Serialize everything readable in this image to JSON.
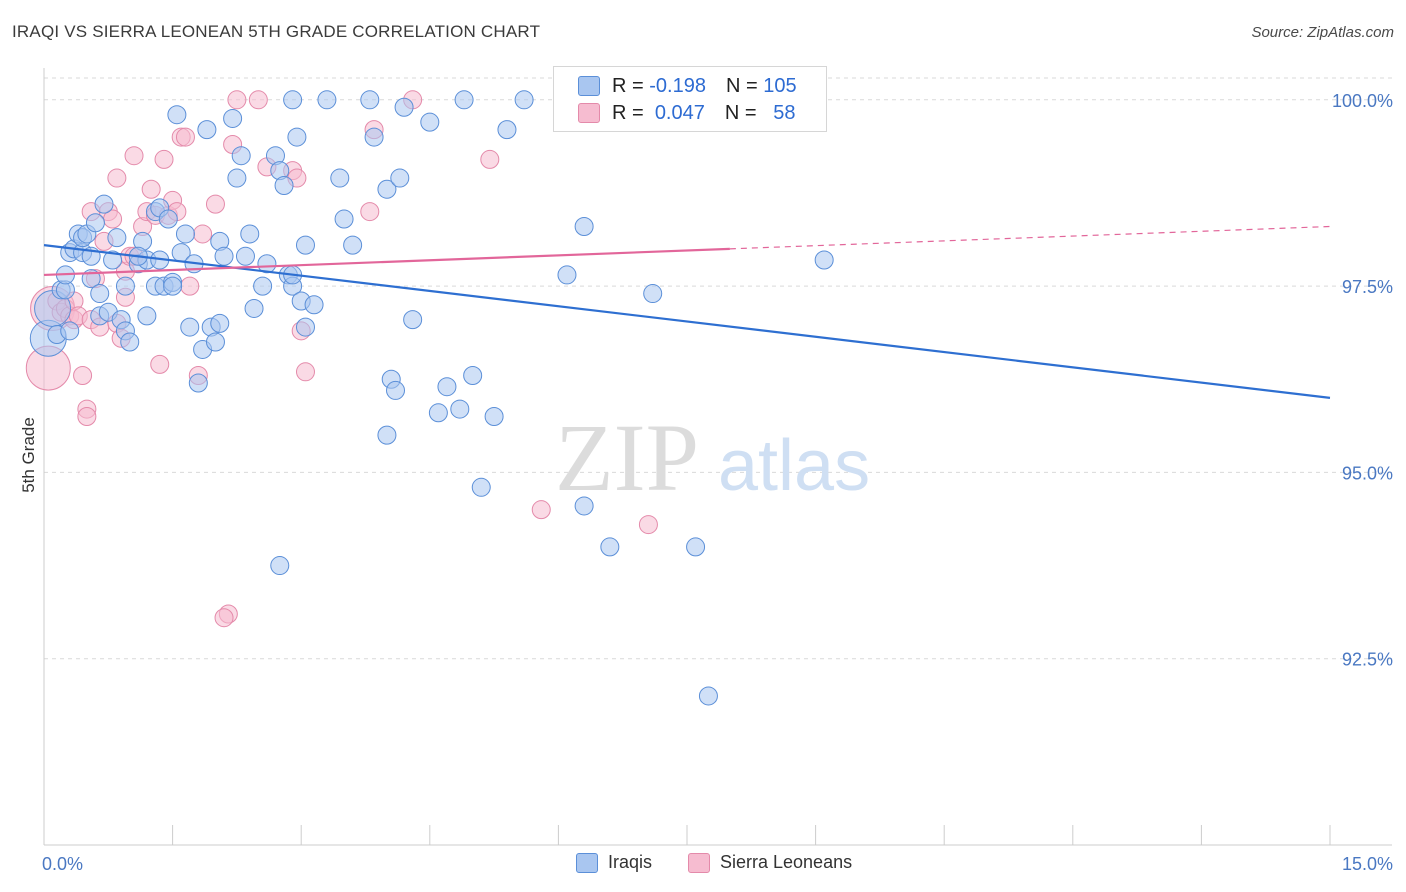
{
  "title": "IRAQI VS SIERRA LEONEAN 5TH GRADE CORRELATION CHART",
  "source": "Source: ZipAtlas.com",
  "watermark": {
    "zip": "ZIP",
    "atlas": "atlas"
  },
  "legend": {
    "rows": [
      {
        "r_label": "R =",
        "r_value": "-0.198",
        "n_label": "N =",
        "n_value": "105"
      },
      {
        "r_label": "R =",
        "r_value": "0.047",
        "n_label": "N =",
        "n_value": "58"
      }
    ]
  },
  "bottom_legend": [
    "Iraqis",
    "Sierra Leoneans"
  ],
  "colors": {
    "iraqis_fill": "#a9c6f0",
    "iraqis_stroke": "#5b8fd8",
    "iraqis_line": "#2e6fd1",
    "sierra_fill": "#f6bcd0",
    "sierra_stroke": "#e48aaa",
    "sierra_line": "#e2669a",
    "tick": "#4a78c2",
    "grid": "#d9d9d9"
  },
  "chart_data": {
    "type": "scatter",
    "title": "IRAQI VS SIERRA LEONEAN 5TH GRADE CORRELATION CHART",
    "xlabel": "",
    "ylabel": "5th Grade",
    "xlim": [
      0,
      15
    ],
    "ylim": [
      90.0,
      100.4
    ],
    "x_tick_labels": [
      "0.0%",
      "15.0%"
    ],
    "y_ticks": [
      92.5,
      95.0,
      97.5,
      100.0
    ],
    "y_tick_labels": [
      "92.5%",
      "95.0%",
      "97.5%",
      "100.0%"
    ],
    "grid": "horizontal dashed",
    "series": [
      {
        "name": "Iraqis",
        "trend": {
          "x": [
            0,
            15
          ],
          "y": [
            98.05,
            96.0
          ]
        },
        "points": [
          [
            0.05,
            96.8
          ],
          [
            0.1,
            97.2
          ],
          [
            0.15,
            96.85
          ],
          [
            0.2,
            97.45
          ],
          [
            0.25,
            97.45
          ],
          [
            0.25,
            97.65
          ],
          [
            0.3,
            97.95
          ],
          [
            0.3,
            96.9
          ],
          [
            0.35,
            98.0
          ],
          [
            0.4,
            98.2
          ],
          [
            0.45,
            97.95
          ],
          [
            0.45,
            98.15
          ],
          [
            0.5,
            98.2
          ],
          [
            0.55,
            97.9
          ],
          [
            0.55,
            97.6
          ],
          [
            0.6,
            98.35
          ],
          [
            0.65,
            97.1
          ],
          [
            0.65,
            97.4
          ],
          [
            0.7,
            98.6
          ],
          [
            0.75,
            97.15
          ],
          [
            0.8,
            97.85
          ],
          [
            0.85,
            98.15
          ],
          [
            0.9,
            97.05
          ],
          [
            0.95,
            97.5
          ],
          [
            0.95,
            96.9
          ],
          [
            1.0,
            96.75
          ],
          [
            1.1,
            97.8
          ],
          [
            1.15,
            98.1
          ],
          [
            1.2,
            97.85
          ],
          [
            1.2,
            97.1
          ],
          [
            1.3,
            98.5
          ],
          [
            1.3,
            97.5
          ],
          [
            1.35,
            98.55
          ],
          [
            1.35,
            97.85
          ],
          [
            1.4,
            97.5
          ],
          [
            1.45,
            98.4
          ],
          [
            1.5,
            97.55
          ],
          [
            1.5,
            97.5
          ],
          [
            1.55,
            99.8
          ],
          [
            1.6,
            97.95
          ],
          [
            1.65,
            98.2
          ],
          [
            1.7,
            96.95
          ],
          [
            1.75,
            97.8
          ],
          [
            1.8,
            96.2
          ],
          [
            1.85,
            96.65
          ],
          [
            1.9,
            99.6
          ],
          [
            1.95,
            96.95
          ],
          [
            2.0,
            96.75
          ],
          [
            2.05,
            98.1
          ],
          [
            2.05,
            97.0
          ],
          [
            2.1,
            97.9
          ],
          [
            2.2,
            99.75
          ],
          [
            2.25,
            98.95
          ],
          [
            2.3,
            99.25
          ],
          [
            2.35,
            97.9
          ],
          [
            2.4,
            98.2
          ],
          [
            2.45,
            97.2
          ],
          [
            2.55,
            97.5
          ],
          [
            2.6,
            97.8
          ],
          [
            2.7,
            99.25
          ],
          [
            2.75,
            99.05
          ],
          [
            2.8,
            98.85
          ],
          [
            2.85,
            97.65
          ],
          [
            2.9,
            97.5
          ],
          [
            2.9,
            97.65
          ],
          [
            2.9,
            100.0
          ],
          [
            2.95,
            99.5
          ],
          [
            3.0,
            97.3
          ],
          [
            3.05,
            98.05
          ],
          [
            3.05,
            96.95
          ],
          [
            3.15,
            97.25
          ],
          [
            3.3,
            100.0
          ],
          [
            3.5,
            98.4
          ],
          [
            3.45,
            98.95
          ],
          [
            3.6,
            98.05
          ],
          [
            3.8,
            100.0
          ],
          [
            3.85,
            99.5
          ],
          [
            4.0,
            98.8
          ],
          [
            4.05,
            96.25
          ],
          [
            4.1,
            96.1
          ],
          [
            4.15,
            98.95
          ],
          [
            4.0,
            95.5
          ],
          [
            4.2,
            99.9
          ],
          [
            4.3,
            97.05
          ],
          [
            4.5,
            99.7
          ],
          [
            4.6,
            95.8
          ],
          [
            4.7,
            96.15
          ],
          [
            4.85,
            95.85
          ],
          [
            4.9,
            100.0
          ],
          [
            5.0,
            96.3
          ],
          [
            5.1,
            94.8
          ],
          [
            5.25,
            95.75
          ],
          [
            5.4,
            99.6
          ],
          [
            5.6,
            100.0
          ],
          [
            6.1,
            97.65
          ],
          [
            6.3,
            98.3
          ],
          [
            6.3,
            94.55
          ],
          [
            6.6,
            94.0
          ],
          [
            7.1,
            97.4
          ],
          [
            7.1,
            100.0
          ],
          [
            7.6,
            94.0
          ],
          [
            7.75,
            92.0
          ],
          [
            9.1,
            97.85
          ],
          [
            2.75,
            93.75
          ],
          [
            1.1,
            97.9
          ]
        ]
      },
      {
        "name": "Sierra Leoneans",
        "trend": {
          "x": [
            0,
            8.0
          ],
          "y": [
            97.65,
            98.0
          ]
        },
        "trend_dashed": {
          "x": [
            8.0,
            15
          ],
          "y": [
            98.0,
            98.3
          ]
        },
        "points": [
          [
            0.05,
            96.4
          ],
          [
            0.1,
            97.2
          ],
          [
            0.15,
            97.3
          ],
          [
            0.2,
            97.15
          ],
          [
            0.25,
            97.2
          ],
          [
            0.3,
            97.1
          ],
          [
            0.35,
            97.05
          ],
          [
            0.35,
            97.3
          ],
          [
            0.4,
            97.1
          ],
          [
            0.45,
            96.3
          ],
          [
            0.5,
            95.85
          ],
          [
            0.5,
            95.75
          ],
          [
            0.55,
            98.5
          ],
          [
            0.55,
            97.05
          ],
          [
            0.6,
            97.6
          ],
          [
            0.65,
            96.95
          ],
          [
            0.7,
            98.1
          ],
          [
            0.75,
            98.5
          ],
          [
            0.8,
            98.4
          ],
          [
            0.85,
            97.0
          ],
          [
            0.85,
            98.95
          ],
          [
            0.9,
            96.8
          ],
          [
            0.95,
            97.35
          ],
          [
            0.95,
            97.7
          ],
          [
            1.0,
            97.9
          ],
          [
            1.05,
            97.9
          ],
          [
            1.05,
            99.25
          ],
          [
            1.15,
            98.3
          ],
          [
            1.2,
            98.5
          ],
          [
            1.25,
            98.8
          ],
          [
            1.3,
            98.45
          ],
          [
            1.35,
            96.45
          ],
          [
            1.4,
            99.2
          ],
          [
            1.45,
            98.45
          ],
          [
            1.5,
            98.65
          ],
          [
            1.55,
            98.5
          ],
          [
            1.6,
            99.5
          ],
          [
            1.65,
            99.5
          ],
          [
            1.7,
            97.5
          ],
          [
            1.8,
            96.3
          ],
          [
            1.85,
            98.2
          ],
          [
            2.0,
            98.6
          ],
          [
            2.15,
            93.1
          ],
          [
            2.2,
            99.4
          ],
          [
            2.25,
            100.0
          ],
          [
            2.5,
            100.0
          ],
          [
            2.6,
            99.1
          ],
          [
            2.9,
            99.05
          ],
          [
            2.95,
            98.95
          ],
          [
            3.0,
            96.9
          ],
          [
            3.05,
            96.35
          ],
          [
            3.8,
            98.5
          ],
          [
            3.85,
            99.6
          ],
          [
            4.3,
            100.0
          ],
          [
            5.2,
            99.2
          ],
          [
            5.8,
            94.5
          ],
          [
            7.05,
            94.3
          ],
          [
            2.1,
            93.05
          ]
        ]
      }
    ]
  }
}
